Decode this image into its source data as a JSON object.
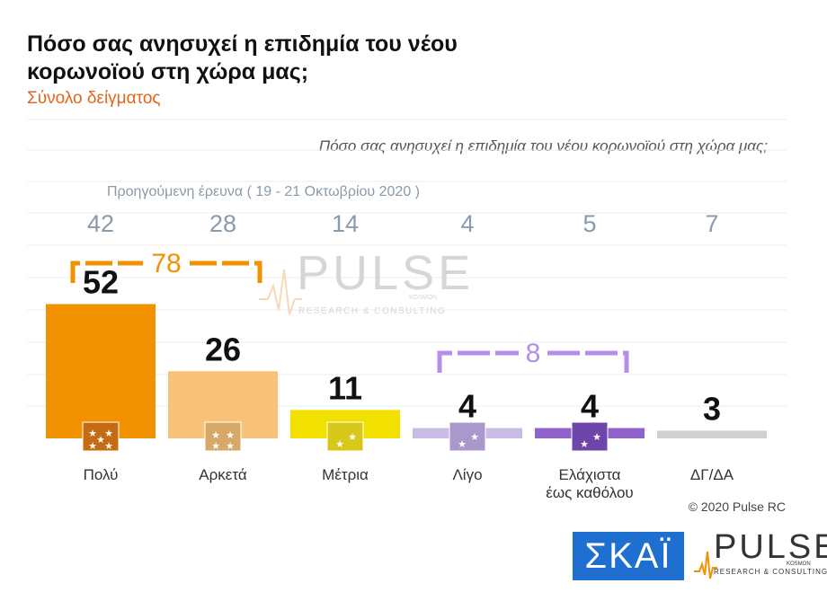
{
  "header": {
    "title": "Πόσο σας ανησυχεί η επιδημία του νέου κορωνοϊού στη χώρα μας;",
    "subtitle": "Σύνολο δείγματος"
  },
  "question_label": "Πόσο σας ανησυχεί η επιδημία του νέου κορωνοϊού στη χώρα μας;",
  "previous_survey_label": "Προηγούμενη έρευνα ( 19 - 21 Οκτωβρίου 2020 )",
  "copyright": "© 2020 Pulse RC",
  "watermark": {
    "word": "PULSE",
    "sub": "RESEARCH & CONSULTING",
    "small": "KOSMON"
  },
  "logos": {
    "skai": "ΣΚΑΪ",
    "pulse_word": "PULSE",
    "pulse_sub": "RESEARCH & CONSULTING",
    "pulse_small": "KOSMON"
  },
  "colors": {
    "poly": "#f39200",
    "arketa": "#f9c27a",
    "metria": "#f2e000",
    "ligo": "#c9bde6",
    "elaxista": "#8f63c9",
    "dgda": "#d0d0d0",
    "sum_positive": "#f39200",
    "sum_negative": "#b48ee8",
    "previous": "#8a9aa9"
  },
  "chart_data": {
    "type": "bar",
    "categories": [
      "Πολύ",
      "Αρκετά",
      "Μέτρια",
      "Λίγο",
      "Ελάχιστα έως καθόλου",
      "ΔΓ/ΔΑ"
    ],
    "category_lines": [
      [
        "Πολύ"
      ],
      [
        "Αρκετά"
      ],
      [
        "Μέτρια"
      ],
      [
        "Λίγο"
      ],
      [
        "Ελάχιστα",
        "έως καθόλου"
      ],
      [
        "ΔΓ/ΔΑ"
      ]
    ],
    "series": [
      {
        "name": "",
        "values": [
          52,
          26,
          11,
          4,
          4,
          3
        ]
      },
      {
        "name": "Προηγούμενη έρευνα ( 19 - 21 Οκτωβρίου 2020 )",
        "values": [
          42,
          28,
          14,
          4,
          5,
          7
        ]
      }
    ],
    "stars": [
      3,
      2,
      1,
      1,
      1,
      0
    ],
    "groups": [
      {
        "value": "78",
        "from": 0,
        "to": 1
      },
      {
        "value": "8",
        "from": 3,
        "to": 4
      }
    ],
    "ylim": [
      0,
      60
    ]
  }
}
